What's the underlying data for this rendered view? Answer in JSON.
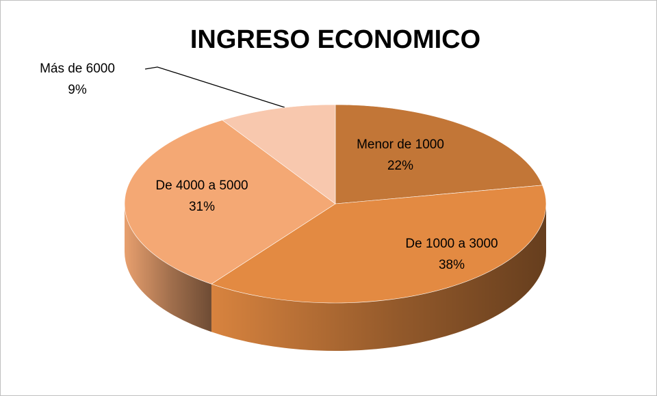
{
  "chart_data": {
    "type": "pie3d",
    "title": "INGRESO ECONOMICO",
    "categories": [
      "Menor de 1000",
      "De 1000 a 3000",
      "De 4000 a 5000",
      "Más de 6000"
    ],
    "values": [
      22,
      38,
      31,
      9
    ],
    "value_labels": [
      "22%",
      "38%",
      "31%",
      "9%"
    ],
    "colors": [
      "#c27637",
      "#e38a42",
      "#f4a874",
      "#f8c8ae"
    ]
  }
}
